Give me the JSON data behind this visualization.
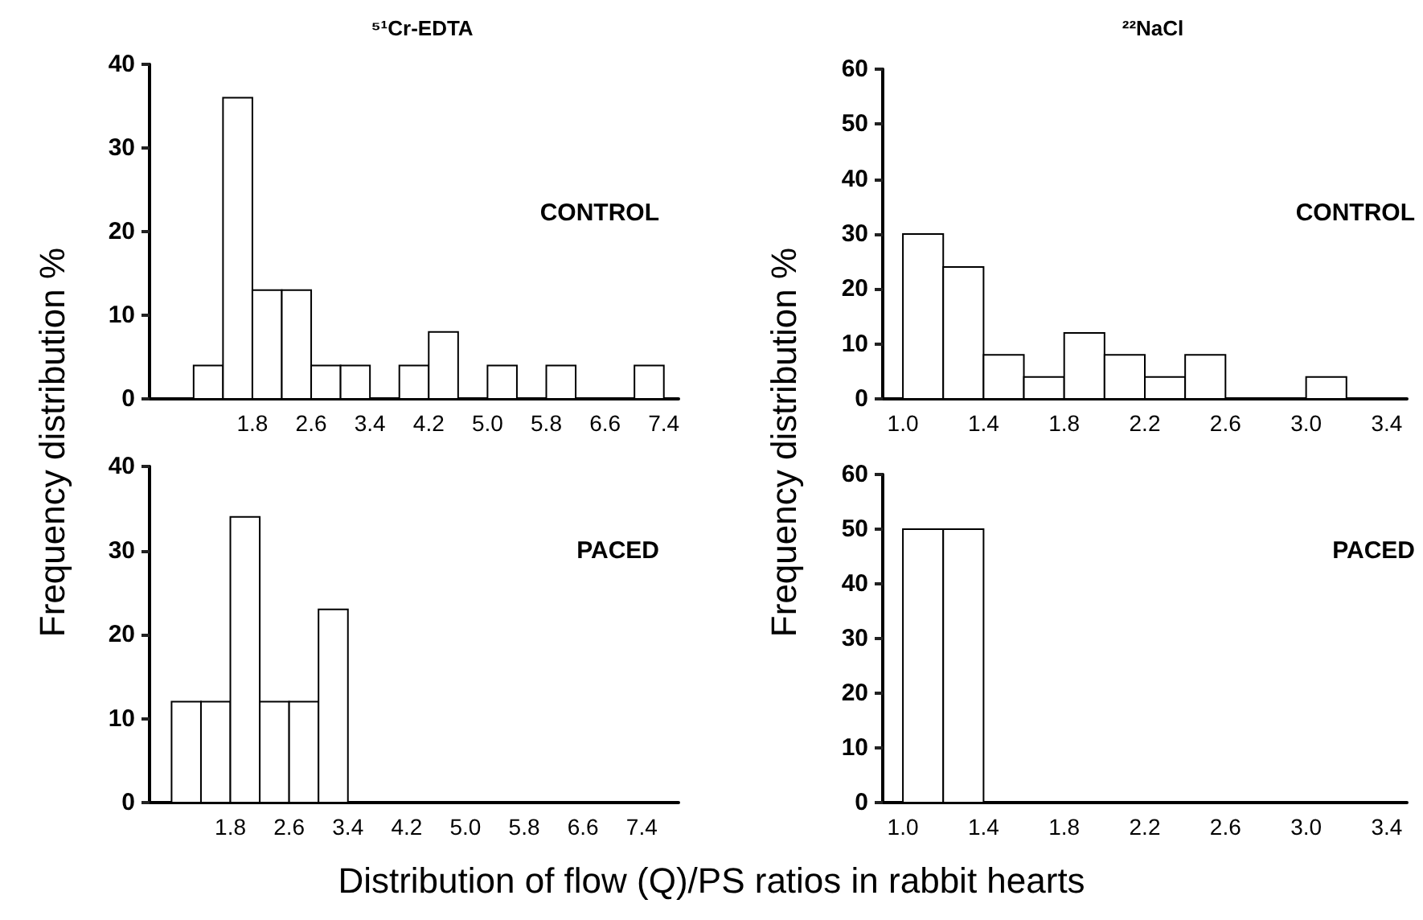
{
  "chart_data": [
    {
      "type": "histogram",
      "title": "⁵¹Cr-EDTA",
      "ylabel": "Frequency distribution %",
      "annotations": [
        "CONTROL"
      ],
      "color": "#ffffff",
      "bins": [
        1.0,
        1.4,
        1.8,
        2.2,
        2.6,
        3.0,
        3.4,
        3.8,
        4.2,
        4.6,
        5.0,
        5.4,
        5.8,
        6.2,
        6.6,
        7.0,
        7.4
      ],
      "values": [
        4,
        36,
        13,
        13,
        4,
        4,
        0,
        4,
        8,
        0,
        4,
        0,
        4,
        0,
        0,
        4
      ],
      "xlim": [
        0.4,
        7.6
      ],
      "xticks": [
        1.8,
        2.6,
        3.4,
        4.2,
        {
          "value": 5,
          "label": "5.0"
        },
        5.8,
        6.6,
        7.4
      ],
      "ylim": [
        0,
        40
      ],
      "yticks": [
        0,
        10,
        20,
        30,
        40
      ],
      "grid": false
    },
    {
      "type": "histogram",
      "title": "²²NaCl",
      "ylabel": "Frequency distribution %",
      "annotations": [
        "CONTROL"
      ],
      "color": "#ffffff",
      "bins": [
        1.0,
        1.2,
        1.4,
        1.6,
        1.8,
        2.0,
        2.2,
        2.4,
        2.6,
        2.8,
        3.0,
        3.2,
        3.4
      ],
      "values": [
        30,
        24,
        8,
        4,
        12,
        8,
        4,
        8,
        0,
        0,
        4,
        0
      ],
      "xlim": [
        0.9,
        3.5
      ],
      "xticks": [
        {
          "value": 1,
          "label": "1.0"
        },
        1.4,
        1.8,
        2.2,
        2.6,
        {
          "value": 3,
          "label": "3.0"
        },
        3.4
      ],
      "ylim": [
        0,
        60
      ],
      "yticks": [
        0,
        10,
        20,
        30,
        40,
        50,
        60
      ],
      "grid": false
    },
    {
      "type": "histogram",
      "xlabel": "Distribution of flow (Q)/PS ratios in rabbit hearts",
      "annotations": [
        "PACED"
      ],
      "color": "#ffffff",
      "bins": [
        1.0,
        1.4,
        1.8,
        2.2,
        2.6,
        3.0,
        3.4,
        3.8,
        4.2,
        4.6,
        5.0,
        5.4,
        5.8,
        6.2,
        6.6,
        7.0,
        7.4
      ],
      "values": [
        12,
        12,
        34,
        12,
        12,
        23,
        0,
        0,
        0,
        0,
        0,
        0,
        0,
        0,
        0,
        0
      ],
      "xlim": [
        0.7,
        7.9
      ],
      "xticks": [
        1.8,
        2.6,
        3.4,
        4.2,
        {
          "value": 5,
          "label": "5.0"
        },
        5.8,
        6.6,
        7.4
      ],
      "ylim": [
        0,
        40
      ],
      "yticks": [
        0,
        10,
        20,
        30,
        40
      ],
      "grid": false
    },
    {
      "type": "histogram",
      "annotations": [
        "PACED"
      ],
      "color": "#ffffff",
      "bins": [
        1.0,
        1.2,
        1.4,
        1.6,
        1.8,
        2.0,
        2.2,
        2.4,
        2.6,
        2.8,
        3.0,
        3.2,
        3.4
      ],
      "values": [
        50,
        50,
        0,
        0,
        0,
        0,
        0,
        0,
        0,
        0,
        0,
        0
      ],
      "xlim": [
        0.9,
        3.5
      ],
      "xticks": [
        {
          "value": 1,
          "label": "1.0"
        },
        1.4,
        1.8,
        2.2,
        2.6,
        {
          "value": 3,
          "label": "3.0"
        },
        3.4
      ],
      "ylim": [
        0,
        60
      ],
      "yticks": [
        0,
        10,
        20,
        30,
        40,
        50,
        60
      ],
      "grid": false
    }
  ]
}
